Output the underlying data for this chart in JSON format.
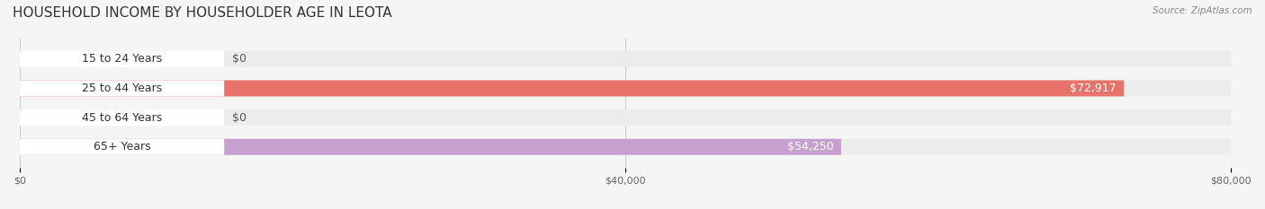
{
  "title": "HOUSEHOLD INCOME BY HOUSEHOLDER AGE IN LEOTA",
  "source": "Source: ZipAtlas.com",
  "categories": [
    "15 to 24 Years",
    "25 to 44 Years",
    "45 to 64 Years",
    "65+ Years"
  ],
  "values": [
    0,
    72917,
    0,
    54250
  ],
  "bar_colors": [
    "#f5c89a",
    "#e8736a",
    "#a8c0e8",
    "#c8a0d0"
  ],
  "label_colors": [
    "#f5c89a",
    "#e8736a",
    "#a8c0e8",
    "#c8a0d0"
  ],
  "value_labels": [
    "$0",
    "$72,917",
    "$0",
    "$54,250"
  ],
  "xlim": [
    0,
    80000
  ],
  "xticks": [
    0,
    40000,
    80000
  ],
  "xticklabels": [
    "$0",
    "$40,000",
    "$80,000"
  ],
  "background_color": "#f5f5f5",
  "bar_bg_color": "#ececec",
  "bar_height": 0.55,
  "title_fontsize": 11,
  "label_fontsize": 9,
  "value_fontsize": 9
}
